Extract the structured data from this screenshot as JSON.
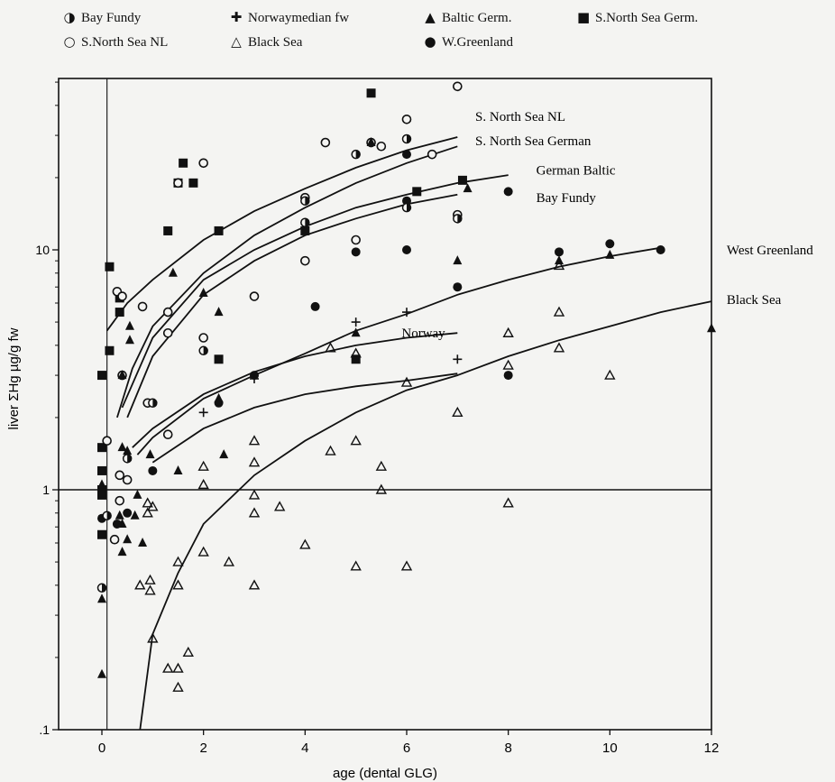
{
  "chart_data": {
    "type": "scatter",
    "xlabel": "age (dental GLG)",
    "ylabel": "liver ΣHg µg/g fw",
    "xlim": [
      -1.2,
      12
    ],
    "ylim": [
      0.1,
      50
    ],
    "yscale": "log",
    "x_ticks": [
      "0",
      "2",
      "4",
      "6",
      "8",
      "10",
      "12"
    ],
    "y_ticks": [
      {
        "v": 0.1,
        "label": ".1"
      },
      {
        "v": 1,
        "label": "1"
      },
      {
        "v": 10,
        "label": "10"
      }
    ],
    "reference_lines": {
      "x": 0.1,
      "y": 1
    },
    "legend": [
      {
        "label": "Bay Fundy",
        "marker": "half-circle"
      },
      {
        "label": "Norwaymedian fw",
        "marker": "plus"
      },
      {
        "label": "Baltic Germ.",
        "marker": "filled-triangle"
      },
      {
        "label": "S.North Sea Germ.",
        "marker": "filled-square"
      },
      {
        "label": "S.North Sea NL",
        "marker": "open-circle"
      },
      {
        "label": "Black Sea",
        "marker": "open-triangle"
      },
      {
        "label": "W.Greenland",
        "marker": "filled-circle"
      }
    ],
    "curves": [
      {
        "name": "S. North Sea NL",
        "points": [
          [
            0.1,
            4.6
          ],
          [
            0.5,
            6
          ],
          [
            1,
            7.5
          ],
          [
            2,
            11
          ],
          [
            3,
            14.5
          ],
          [
            4,
            18
          ],
          [
            5,
            22
          ],
          [
            6,
            26
          ],
          [
            7,
            29.5
          ]
        ]
      },
      {
        "name": "S. North Sea German",
        "points": [
          [
            0.3,
            2
          ],
          [
            0.6,
            3.2
          ],
          [
            1,
            4.8
          ],
          [
            2,
            8
          ],
          [
            3,
            11.5
          ],
          [
            4,
            15
          ],
          [
            5,
            19
          ],
          [
            6,
            23
          ],
          [
            7,
            27
          ]
        ]
      },
      {
        "name": "German Baltic",
        "points": [
          [
            0.4,
            2.2
          ],
          [
            1,
            4.3
          ],
          [
            2,
            7.5
          ],
          [
            3,
            10
          ],
          [
            4,
            12.5
          ],
          [
            5,
            15
          ],
          [
            6,
            17
          ],
          [
            7,
            19
          ],
          [
            8,
            20.5
          ]
        ]
      },
      {
        "name": "Bay Fundy",
        "points": [
          [
            0.5,
            2
          ],
          [
            1,
            3.6
          ],
          [
            2,
            6.5
          ],
          [
            3,
            9
          ],
          [
            4,
            11.5
          ],
          [
            5,
            13.5
          ],
          [
            6,
            15.5
          ],
          [
            7,
            17
          ]
        ]
      },
      {
        "name": "Norway",
        "points": [
          [
            0.6,
            1.5
          ],
          [
            1,
            1.8
          ],
          [
            2,
            2.5
          ],
          [
            3,
            3.1
          ],
          [
            4,
            3.6
          ],
          [
            5,
            4
          ],
          [
            6,
            4.3
          ],
          [
            7,
            4.5
          ]
        ]
      },
      {
        "name": "West Greenland",
        "points": [
          [
            0.7,
            1.4
          ],
          [
            1,
            1.65
          ],
          [
            2,
            2.4
          ],
          [
            3,
            3
          ],
          [
            4,
            3.7
          ],
          [
            5,
            4.6
          ],
          [
            6,
            5.4
          ],
          [
            7,
            6.5
          ],
          [
            8,
            7.5
          ],
          [
            9,
            8.5
          ],
          [
            10,
            9.4
          ],
          [
            11,
            10.2
          ]
        ]
      },
      {
        "name": "Norway median",
        "points": [
          [
            1,
            1.3
          ],
          [
            2,
            1.8
          ],
          [
            3,
            2.2
          ],
          [
            4,
            2.5
          ],
          [
            5,
            2.7
          ],
          [
            6,
            2.85
          ],
          [
            7,
            3.05
          ]
        ]
      },
      {
        "name": "Black Sea",
        "points": [
          [
            0.75,
            0.1
          ],
          [
            1,
            0.25
          ],
          [
            1.5,
            0.45
          ],
          [
            2,
            0.72
          ],
          [
            3,
            1.15
          ],
          [
            4,
            1.6
          ],
          [
            5,
            2.1
          ],
          [
            6,
            2.6
          ],
          [
            7,
            3
          ],
          [
            8,
            3.6
          ],
          [
            9,
            4.2
          ],
          [
            10,
            4.8
          ],
          [
            11,
            5.5
          ],
          [
            12,
            6.1
          ]
        ]
      }
    ],
    "curve_labels": [
      {
        "text": "S. North Sea NL",
        "x": 7.35,
        "y": 36
      },
      {
        "text": "S. North Sea German",
        "x": 7.35,
        "y": 28.5
      },
      {
        "text": "German Baltic",
        "x": 8.55,
        "y": 21.5
      },
      {
        "text": "Bay Fundy",
        "x": 8.55,
        "y": 16.5
      },
      {
        "text": "West Greenland",
        "x": 12.3,
        "y": 10
      },
      {
        "text": "Black Sea",
        "x": 12.3,
        "y": 6.2
      },
      {
        "text": "Norway",
        "x": 5.9,
        "y": 4.5
      }
    ],
    "series": [
      {
        "name": "S.North Sea Germ.",
        "marker": "filled-square",
        "points": [
          [
            0,
            3
          ],
          [
            0,
            1.5
          ],
          [
            0,
            1.2
          ],
          [
            0,
            1
          ],
          [
            0,
            0.95
          ],
          [
            0,
            0.65
          ],
          [
            0.15,
            3.8
          ],
          [
            0.15,
            8.5
          ],
          [
            0.35,
            6.3
          ],
          [
            0.35,
            5.5
          ],
          [
            1.3,
            12
          ],
          [
            1.6,
            23
          ],
          [
            1.5,
            19
          ],
          [
            1.8,
            19
          ],
          [
            2.3,
            12
          ],
          [
            2.3,
            3.5
          ],
          [
            4,
            12
          ],
          [
            5,
            3.5
          ],
          [
            5.3,
            45
          ],
          [
            6.2,
            17.5
          ],
          [
            7.1,
            19.5
          ]
        ]
      },
      {
        "name": "S.North Sea NL",
        "marker": "open-circle",
        "points": [
          [
            0.25,
            0.62
          ],
          [
            0.35,
            0.9
          ],
          [
            0.5,
            1.1
          ],
          [
            0.1,
            1.6
          ],
          [
            0.35,
            1.15
          ],
          [
            0.4,
            3
          ],
          [
            0.3,
            6.7
          ],
          [
            0.4,
            6.4
          ],
          [
            0.8,
            5.8
          ],
          [
            0.9,
            2.3
          ],
          [
            1.3,
            5.5
          ],
          [
            1.3,
            4.5
          ],
          [
            1.5,
            19
          ],
          [
            2,
            23
          ],
          [
            3,
            6.4
          ],
          [
            4,
            9
          ],
          [
            4.4,
            28
          ],
          [
            5,
            11
          ],
          [
            5.3,
            28
          ],
          [
            5.5,
            27
          ],
          [
            6,
            35
          ],
          [
            6.5,
            25
          ],
          [
            7,
            14
          ],
          [
            7,
            48
          ],
          [
            4,
            16.5
          ],
          [
            2,
            4.3
          ],
          [
            1.3,
            1.7
          ]
        ]
      },
      {
        "name": "Baltic Germ.",
        "marker": "filled-triangle",
        "points": [
          [
            0,
            0.17
          ],
          [
            0,
            0.35
          ],
          [
            0,
            1.05
          ],
          [
            0.4,
            3
          ],
          [
            0.4,
            1.5
          ],
          [
            0.55,
            4.2
          ],
          [
            0.55,
            4.8
          ],
          [
            0.35,
            0.78
          ],
          [
            0.4,
            0.72
          ],
          [
            0.4,
            0.55
          ],
          [
            0.5,
            0.62
          ],
          [
            0.7,
            0.95
          ],
          [
            0.65,
            0.78
          ],
          [
            0.8,
            0.6
          ],
          [
            0.95,
            1.4
          ],
          [
            0.5,
            1.45
          ],
          [
            1.5,
            1.2
          ],
          [
            1.4,
            8
          ],
          [
            2,
            6.6
          ],
          [
            2.3,
            5.5
          ],
          [
            2.3,
            2.4
          ],
          [
            2.4,
            1.4
          ],
          [
            5,
            4.5
          ],
          [
            5.3,
            28
          ],
          [
            7,
            9
          ],
          [
            7.2,
            18
          ],
          [
            10,
            9.5
          ],
          [
            12,
            4.7
          ],
          [
            9,
            9
          ]
        ]
      },
      {
        "name": "Black Sea",
        "marker": "open-triangle",
        "points": [
          [
            0.75,
            0.4
          ],
          [
            0.95,
            0.42
          ],
          [
            0.95,
            0.38
          ],
          [
            1,
            0.85
          ],
          [
            0.9,
            0.88
          ],
          [
            0.9,
            0.8
          ],
          [
            1,
            0.24
          ],
          [
            1.3,
            0.18
          ],
          [
            1.5,
            0.18
          ],
          [
            1.5,
            0.15
          ],
          [
            1.5,
            0.4
          ],
          [
            1.5,
            0.5
          ],
          [
            1.7,
            0.21
          ],
          [
            2,
            0.55
          ],
          [
            2,
            1.05
          ],
          [
            2,
            1.25
          ],
          [
            2.5,
            0.5
          ],
          [
            3,
            1.3
          ],
          [
            3,
            0.95
          ],
          [
            3,
            0.8
          ],
          [
            3,
            0.4
          ],
          [
            3,
            1.6
          ],
          [
            3.5,
            0.85
          ],
          [
            4,
            0.59
          ],
          [
            4.5,
            1.45
          ],
          [
            4.5,
            3.9
          ],
          [
            5,
            0.48
          ],
          [
            5,
            3.7
          ],
          [
            5,
            1.6
          ],
          [
            5.5,
            1.25
          ],
          [
            5.5,
            1.0
          ],
          [
            6,
            0.48
          ],
          [
            6,
            2.8
          ],
          [
            7,
            2.1
          ],
          [
            8,
            0.88
          ],
          [
            8,
            3.3
          ],
          [
            8,
            4.5
          ],
          [
            9,
            3.9
          ],
          [
            9,
            8.6
          ],
          [
            9,
            5.5
          ],
          [
            10,
            3
          ]
        ]
      },
      {
        "name": "W.Greenland",
        "marker": "filled-circle",
        "points": [
          [
            0,
            0.76
          ],
          [
            0.3,
            0.72
          ],
          [
            0.5,
            0.8
          ],
          [
            1,
            1.2
          ],
          [
            2.3,
            2.3
          ],
          [
            3,
            3
          ],
          [
            4,
            13
          ],
          [
            4.2,
            5.8
          ],
          [
            5,
            9.8
          ],
          [
            6,
            10
          ],
          [
            6,
            25
          ],
          [
            6,
            16
          ],
          [
            7,
            7
          ],
          [
            8,
            3
          ],
          [
            8,
            17.5
          ],
          [
            9,
            9.8
          ],
          [
            10,
            10.6
          ],
          [
            11,
            10
          ]
        ]
      },
      {
        "name": "Bay Fundy",
        "marker": "half-circle",
        "points": [
          [
            0,
            0.39
          ],
          [
            0.1,
            0.78
          ],
          [
            0.5,
            1.35
          ],
          [
            1,
            2.3
          ],
          [
            2,
            3.8
          ],
          [
            4,
            13
          ],
          [
            5,
            25
          ],
          [
            6,
            15
          ],
          [
            7,
            13.5
          ],
          [
            6,
            29
          ],
          [
            4,
            16
          ]
        ]
      },
      {
        "name": "Norwaymedian fw",
        "marker": "plus",
        "points": [
          [
            2,
            2.1
          ],
          [
            3,
            2.9
          ],
          [
            5,
            5
          ],
          [
            6,
            5.5
          ],
          [
            7,
            3.5
          ]
        ]
      }
    ]
  }
}
